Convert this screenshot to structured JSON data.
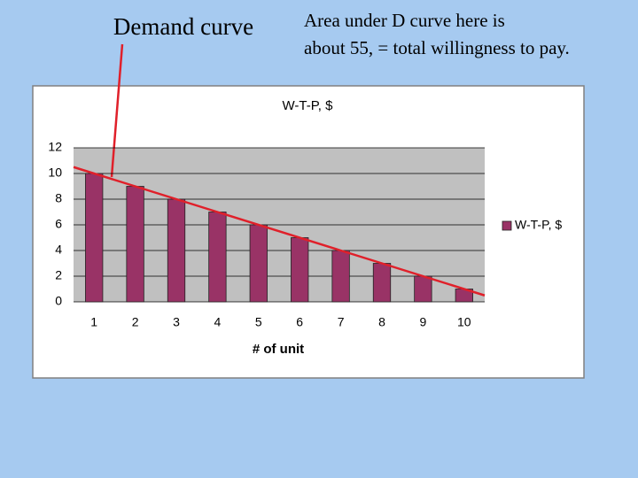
{
  "chart_data": {
    "type": "bar",
    "title": "W-T-P, $",
    "xlabel": "# of unit",
    "annotations": [
      "Demand curve",
      "Area under D curve here is",
      "about 55, = total willingness to pay."
    ],
    "categories": [
      "1",
      "2",
      "3",
      "4",
      "5",
      "6",
      "7",
      "8",
      "9",
      "10"
    ],
    "series": [
      {
        "name": "W-T-P, $",
        "color": "#993366",
        "values": [
          10,
          9,
          8,
          7,
          6,
          5,
          4,
          3,
          2,
          1
        ]
      }
    ],
    "ylim": [
      0,
      12
    ],
    "yticks": [
      0,
      2,
      4,
      6,
      8,
      10,
      12
    ],
    "grid": true,
    "legend": "right",
    "trendline": "linear"
  }
}
